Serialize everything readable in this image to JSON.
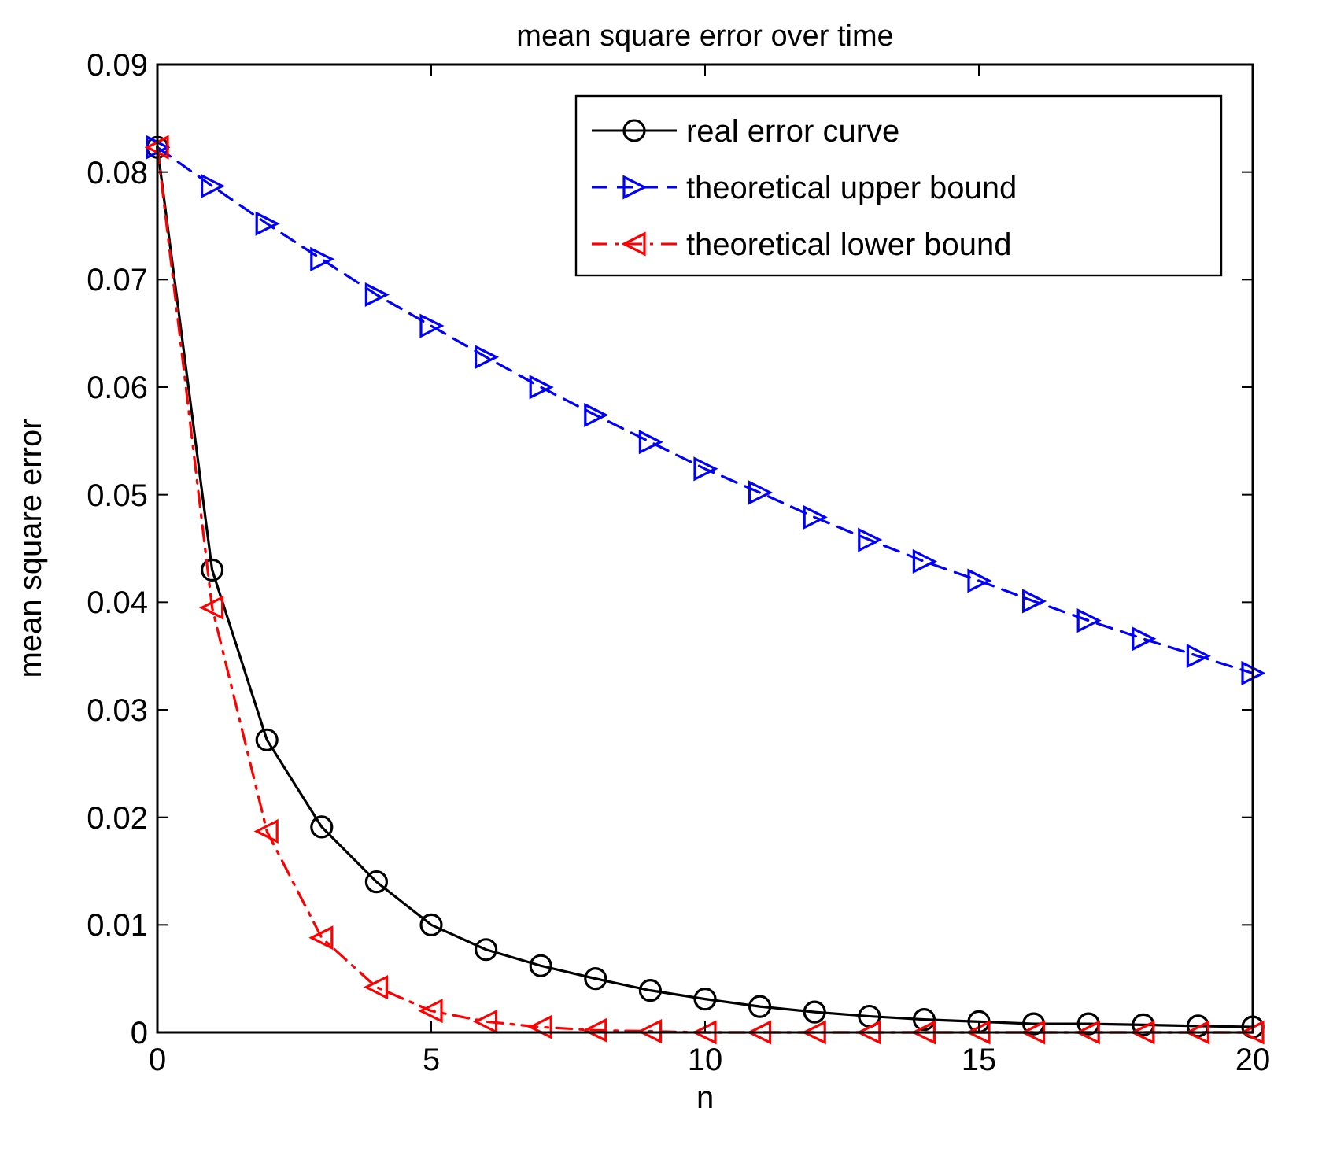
{
  "chart_data": {
    "type": "line",
    "title": "mean square error over time",
    "xlabel": "n",
    "ylabel": "mean square error",
    "x": [
      0,
      1,
      2,
      3,
      4,
      5,
      6,
      7,
      8,
      9,
      10,
      11,
      12,
      13,
      14,
      15,
      16,
      17,
      18,
      19,
      20
    ],
    "series": [
      {
        "name": "real error curve",
        "color": "#000000",
        "marker": "circle",
        "line_style": "solid",
        "values": [
          0.0823,
          0.043,
          0.0272,
          0.0191,
          0.014,
          0.01,
          0.0077,
          0.0062,
          0.005,
          0.0039,
          0.0031,
          0.0024,
          0.0019,
          0.0015,
          0.0012,
          0.001,
          0.0008,
          0.0008,
          0.0007,
          0.0006,
          0.0005
        ]
      },
      {
        "name": "theoretical upper bound",
        "color": "#0000ff",
        "marker": "triangle-right",
        "line_style": "dashed",
        "values": [
          0.0823,
          0.0787,
          0.0752,
          0.0719,
          0.0686,
          0.0657,
          0.0628,
          0.06,
          0.0574,
          0.0549,
          0.0524,
          0.0502,
          0.0479,
          0.0458,
          0.0438,
          0.042,
          0.0401,
          0.0383,
          0.0366,
          0.035,
          0.0334
        ]
      },
      {
        "name": "theoretical lower bound",
        "color": "#ff0000",
        "marker": "triangle-left",
        "line_style": "dashdot",
        "values": [
          0.0823,
          0.0395,
          0.0187,
          0.0088,
          0.0042,
          0.002,
          0.001,
          0.0005,
          0.0002,
          0.0001,
          0,
          0,
          0,
          0,
          0,
          0,
          0,
          0,
          0,
          0,
          0
        ]
      }
    ],
    "xlim": [
      0,
      20
    ],
    "xticks": [
      0,
      5,
      10,
      15,
      20
    ],
    "ylim": [
      0,
      0.09
    ],
    "yticks": [
      0,
      0.01,
      0.02,
      0.03,
      0.04,
      0.05,
      0.06,
      0.07,
      0.08,
      0.09
    ],
    "grid": false,
    "legend": "top right"
  }
}
